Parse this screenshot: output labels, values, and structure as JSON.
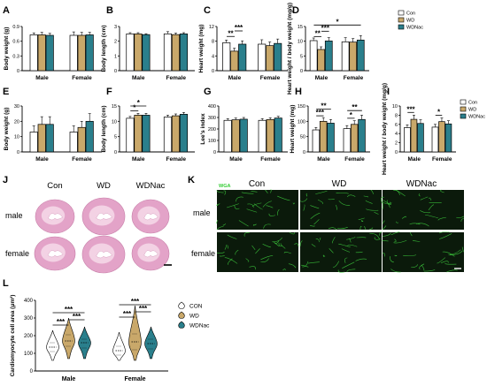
{
  "colors": {
    "con": "#ffffff",
    "wd": "#c9a86a",
    "wdnac": "#2a7f8c",
    "heart_tissue": "#e3a3c8",
    "heart_light": "#f3d2e4",
    "heart_lumen": "#ffffff",
    "wga_bg": "#0b1a0b",
    "wga_line": "#3fd33f",
    "wga_label": "#33cc33"
  },
  "chart_data": [
    {
      "panel": "A",
      "type": "bar",
      "categories": [
        "Male",
        "Female"
      ],
      "ylabel": "Body weight (g)",
      "ylim": [
        0,
        0.9
      ],
      "yticks": [
        "0",
        "0.3",
        "0.6",
        "0.9"
      ],
      "series": [
        {
          "values": [
            0.73,
            0.72
          ]
        },
        {
          "values": [
            0.73,
            0.72
          ]
        },
        {
          "values": [
            0.72,
            0.73
          ]
        }
      ],
      "errors": [
        [
          0.04,
          0.07
        ],
        [
          0.05,
          0.06
        ],
        [
          0.04,
          0.05
        ]
      ],
      "annotations": []
    },
    {
      "panel": "B",
      "type": "bar",
      "categories": [
        "Male",
        "Female"
      ],
      "ylabel": "Body length (cm)",
      "ylim": [
        0,
        3
      ],
      "yticks": [
        "0",
        "1",
        "2",
        "3"
      ],
      "series": [
        {
          "values": [
            2.5,
            2.5
          ]
        },
        {
          "values": [
            2.5,
            2.45
          ]
        },
        {
          "values": [
            2.45,
            2.5
          ]
        }
      ],
      "errors": [
        [
          0.08,
          0.15
        ],
        [
          0.08,
          0.1
        ],
        [
          0.06,
          0.08
        ]
      ],
      "annotations": []
    },
    {
      "panel": "C",
      "type": "bar",
      "categories": [
        "Male",
        "Female"
      ],
      "ylabel": "Heart weight (mg)",
      "ylim": [
        0,
        12
      ],
      "yticks": [
        "0",
        "4",
        "8",
        "12"
      ],
      "series": [
        {
          "values": [
            7.6,
            7.2
          ]
        },
        {
          "values": [
            5.3,
            6.8
          ]
        },
        {
          "values": [
            7.2,
            7.4
          ]
        }
      ],
      "errors": [
        [
          0.7,
          1.2
        ],
        [
          0.8,
          1.0
        ],
        [
          0.9,
          1.2
        ]
      ],
      "annotations": [
        {
          "text": "**",
          "group": 0,
          "from": 0,
          "to": 1,
          "y": 9.3
        },
        {
          "text": "***",
          "group": 0,
          "from": 1,
          "to": 2,
          "y": 10.8
        }
      ]
    },
    {
      "panel": "D",
      "type": "bar",
      "categories": [
        "Male",
        "Female"
      ],
      "ylabel": "Heart weight / body weight (mg/g)",
      "ylim": [
        0,
        15
      ],
      "yticks": [
        "0",
        "5",
        "10",
        "15"
      ],
      "series": [
        {
          "values": [
            10.2,
            9.8
          ]
        },
        {
          "values": [
            7.2,
            9.7
          ]
        },
        {
          "values": [
            10.1,
            10.4
          ]
        }
      ],
      "errors": [
        [
          0.9,
          1.4
        ],
        [
          0.9,
          1.2
        ],
        [
          1.1,
          1.5
        ]
      ],
      "annotations": [
        {
          "text": "**",
          "group": 0,
          "from": 0,
          "to": 1,
          "y": 11.6
        },
        {
          "text": "***",
          "group": 0,
          "from": 1,
          "to": 2,
          "y": 13.4
        },
        {
          "text": "*",
          "span": [
            0,
            1
          ],
          "y": 15.5
        }
      ],
      "legend": [
        "Con",
        "WD",
        "WDNac"
      ]
    },
    {
      "panel": "E",
      "type": "bar",
      "categories": [
        "Male",
        "Female"
      ],
      "ylabel": "Body weight (g)",
      "ylim": [
        0,
        30
      ],
      "yticks": [
        "0",
        "10",
        "20",
        "30"
      ],
      "series": [
        {
          "values": [
            13,
            13
          ]
        },
        {
          "values": [
            18,
            16
          ]
        },
        {
          "values": [
            18,
            20
          ]
        }
      ],
      "errors": [
        [
          4,
          4
        ],
        [
          5,
          4
        ],
        [
          5,
          5
        ]
      ],
      "annotations": []
    },
    {
      "panel": "F",
      "type": "bar",
      "categories": [
        "Male",
        "Female"
      ],
      "ylabel": "Body length (cm)",
      "ylim": [
        0,
        15
      ],
      "yticks": [
        "0",
        "5",
        "10",
        "15"
      ],
      "series": [
        {
          "values": [
            11.0,
            11.4
          ]
        },
        {
          "values": [
            12.0,
            11.8
          ]
        },
        {
          "values": [
            12.0,
            12.3
          ]
        }
      ],
      "errors": [
        [
          0.6,
          0.6
        ],
        [
          0.6,
          0.6
        ],
        [
          0.6,
          0.6
        ]
      ],
      "annotations": [
        {
          "text": "*",
          "group": 0,
          "from": 0,
          "to": 1,
          "y": 13.4
        },
        {
          "text": "*",
          "group": 0,
          "from": 0,
          "to": 2,
          "y": 15.0
        }
      ]
    },
    {
      "panel": "G",
      "type": "bar",
      "categories": [
        "Male",
        "Female"
      ],
      "ylabel": "Lee's index",
      "ylim": [
        0,
        400
      ],
      "yticks": [
        "0",
        "100",
        "200",
        "300",
        "400"
      ],
      "series": [
        {
          "values": [
            275,
            275
          ]
        },
        {
          "values": [
            280,
            282
          ]
        },
        {
          "values": [
            285,
            295
          ]
        }
      ],
      "errors": [
        [
          15,
          15
        ],
        [
          15,
          15
        ],
        [
          15,
          15
        ]
      ],
      "annotations": []
    },
    {
      "panel": "H",
      "type": "bar",
      "categories": [
        "Male",
        "Female"
      ],
      "ylabel": "Heart weight (mg)",
      "ylim": [
        0,
        150
      ],
      "yticks": [
        "0",
        "50",
        "100",
        "150"
      ],
      "series": [
        {
          "values": [
            72,
            76
          ]
        },
        {
          "values": [
            100,
            90
          ]
        },
        {
          "values": [
            94,
            106
          ]
        }
      ],
      "errors": [
        [
          8,
          10
        ],
        [
          12,
          12
        ],
        [
          12,
          14
        ]
      ],
      "annotations": [
        {
          "text": "***",
          "group": 0,
          "from": 0,
          "to": 1,
          "y": 118
        },
        {
          "text": "**",
          "group": 0,
          "from": 0,
          "to": 2,
          "y": 140
        },
        {
          "text": "*",
          "group": 1,
          "from": 0,
          "to": 1,
          "y": 110
        },
        {
          "text": "**",
          "group": 1,
          "from": 0,
          "to": 2,
          "y": 135
        }
      ]
    },
    {
      "panel": "I",
      "type": "bar",
      "categories": [
        "Male",
        "Female"
      ],
      "ylabel": "Heart weight / body weight (mg/g)",
      "ylim": [
        0,
        10
      ],
      "yticks": [
        "0",
        "2",
        "4",
        "6",
        "8",
        "10"
      ],
      "series": [
        {
          "values": [
            5.3,
            5.4
          ]
        },
        {
          "values": [
            7.1,
            6.6
          ]
        },
        {
          "values": [
            6.2,
            6.1
          ]
        }
      ],
      "errors": [
        [
          0.6,
          0.6
        ],
        [
          0.9,
          0.8
        ],
        [
          0.8,
          0.7
        ]
      ],
      "annotations": [
        {
          "text": "***",
          "group": 0,
          "from": 0,
          "to": 1,
          "y": 8.6
        },
        {
          "text": "*",
          "group": 1,
          "from": 0,
          "to": 1,
          "y": 8.0
        }
      ],
      "legend": [
        "Con",
        "WD",
        "WDNac"
      ]
    },
    {
      "panel": "L",
      "type": "violin",
      "categories": [
        "Male",
        "Female"
      ],
      "ylabel": "Cardiomyocyte cell area (μm²)",
      "ylim": [
        0,
        400
      ],
      "yticks": [
        "0",
        "100",
        "200",
        "300",
        "400"
      ],
      "legend": [
        "CON",
        "WD",
        "WDNac"
      ],
      "series": [
        {
          "name": "CON",
          "min": [
            60,
            60
          ],
          "q1": [
            110,
            90
          ],
          "median": [
            135,
            115
          ],
          "q3": [
            160,
            140
          ],
          "max": [
            230,
            220
          ]
        },
        {
          "name": "WD",
          "min": [
            70,
            60
          ],
          "q1": [
            140,
            120
          ],
          "median": [
            170,
            165
          ],
          "q3": [
            205,
            210
          ],
          "max": [
            300,
            370
          ]
        },
        {
          "name": "WDNac",
          "min": [
            70,
            70
          ],
          "q1": [
            130,
            125
          ],
          "median": [
            160,
            155
          ],
          "q3": [
            180,
            180
          ],
          "max": [
            250,
            250
          ]
        }
      ],
      "annotations": [
        {
          "text": "***",
          "group": 0,
          "from": 0,
          "to": 1,
          "y": 260
        },
        {
          "text": "***",
          "group": 0,
          "from": 1,
          "to": 2,
          "y": 290
        },
        {
          "text": "***",
          "group": 0,
          "from": 0,
          "to": 2,
          "y": 330
        },
        {
          "text": "***",
          "group": 1,
          "from": 0,
          "to": 1,
          "y": 305
        },
        {
          "text": "***",
          "group": 1,
          "from": 1,
          "to": 2,
          "y": 335
        },
        {
          "text": "***",
          "group": 1,
          "from": 0,
          "to": 2,
          "y": 375
        }
      ]
    }
  ],
  "panel_j": {
    "letter": "J",
    "columns": [
      "Con",
      "WD",
      "WDNac"
    ],
    "rows": [
      "male",
      "female"
    ]
  },
  "panel_k": {
    "letter": "K",
    "stain_label": "WGA",
    "columns": [
      "Con",
      "WD",
      "WDNac"
    ],
    "rows": [
      "male",
      "female"
    ]
  },
  "panel_l_letter": "L"
}
